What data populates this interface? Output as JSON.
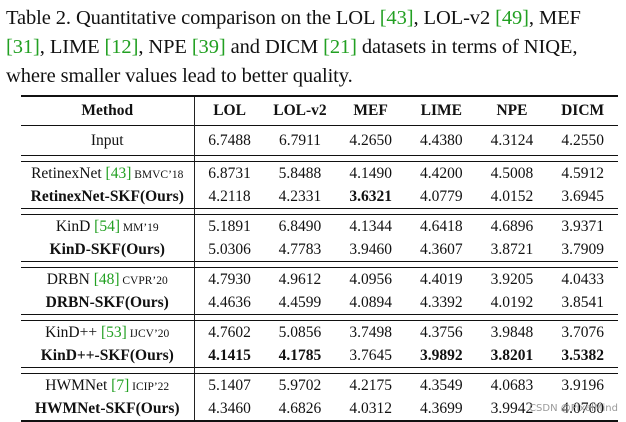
{
  "caption": {
    "p1": "Table 2. Quantitative comparison on the LOL ",
    "r1": "[43]",
    "p2": ", LOL-v2 ",
    "r2": "[49]",
    "p3": ", MEF ",
    "r3": "[31]",
    "p4": ", LIME ",
    "r4": "[12]",
    "p5": ", NPE ",
    "r5": "[39]",
    "p6": " and DICM ",
    "r6": "[21]",
    "p7": " datasets in terms of NIQE, where smaller values lead to better quality."
  },
  "table": {
    "headers": [
      "Method",
      "LOL",
      "LOL-v2",
      "MEF",
      "LIME",
      "NPE",
      "DICM"
    ],
    "input": {
      "name": "Input",
      "values": [
        "6.7488",
        "6.7911",
        "4.2650",
        "4.4380",
        "4.3124",
        "4.2550"
      ]
    },
    "groups": [
      {
        "base": {
          "name": "RetinexNet ",
          "ref": "[43]",
          "venue": " BMVC’18",
          "values": [
            "6.8731",
            "5.8488",
            "4.1490",
            "4.4200",
            "4.5008",
            "4.5912"
          ]
        },
        "ours": {
          "name": "RetinexNet-SKF(Ours)",
          "values": [
            "4.2118",
            "4.2331",
            "3.6321",
            "4.0779",
            "4.0152",
            "3.6945"
          ],
          "bold": [
            false,
            false,
            true,
            false,
            false,
            false
          ]
        }
      },
      {
        "base": {
          "name": "KinD ",
          "ref": "[54]",
          "venue": " MM’19",
          "values": [
            "5.1891",
            "6.8490",
            "4.1344",
            "4.6418",
            "4.6896",
            "3.9371"
          ]
        },
        "ours": {
          "name": "KinD-SKF(Ours)",
          "values": [
            "5.0306",
            "4.7783",
            "3.9460",
            "4.3607",
            "3.8721",
            "3.7909"
          ],
          "bold": [
            false,
            false,
            false,
            false,
            false,
            false
          ]
        }
      },
      {
        "base": {
          "name": "DRBN ",
          "ref": "[48]",
          "venue": " CVPR’20",
          "values": [
            "4.7930",
            "4.9612",
            "4.0956",
            "4.4019",
            "3.9205",
            "4.0433"
          ]
        },
        "ours": {
          "name": "DRBN-SKF(Ours)",
          "values": [
            "4.4636",
            "4.4599",
            "4.0894",
            "4.3392",
            "4.0192",
            "3.8541"
          ],
          "bold": [
            false,
            false,
            false,
            false,
            false,
            false
          ]
        }
      },
      {
        "base": {
          "name": "KinD++ ",
          "ref": "[53]",
          "venue": " IJCV’20",
          "values": [
            "4.7602",
            "5.0856",
            "3.7498",
            "4.3756",
            "3.9848",
            "3.7076"
          ]
        },
        "ours": {
          "name": "KinD++-SKF(Ours)",
          "values": [
            "4.1415",
            "4.1785",
            "3.7645",
            "3.9892",
            "3.8201",
            "3.5382"
          ],
          "bold": [
            true,
            true,
            false,
            true,
            true,
            true
          ]
        }
      },
      {
        "base": {
          "name": "HWMNet ",
          "ref": "[7]",
          "venue": " ICIP’22",
          "values": [
            "5.1407",
            "5.9702",
            "4.2175",
            "4.3549",
            "4.0683",
            "3.9196"
          ]
        },
        "ours": {
          "name": "HWMNet-SKF(Ours)",
          "values": [
            "4.3460",
            "4.6826",
            "4.0312",
            "4.3699",
            "3.9942",
            "4.0760"
          ],
          "bold": [
            false,
            false,
            false,
            false,
            false,
            false
          ]
        }
      }
    ]
  },
  "watermark": "CSDN @PixelMind"
}
